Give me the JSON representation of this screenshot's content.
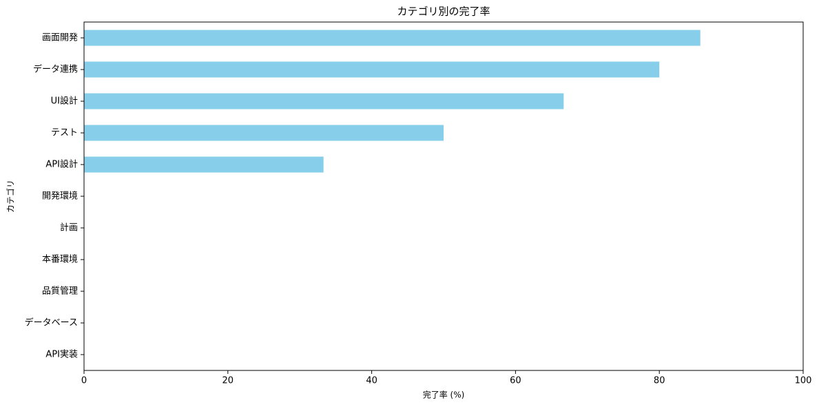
{
  "chart_data": {
    "type": "barh",
    "title": "カテゴリ別の完了率",
    "xlabel": "完了率 (%)",
    "ylabel": "カテゴリ",
    "categories": [
      "画面開発",
      "データ連携",
      "UI設計",
      "テスト",
      "API設計",
      "開発環境",
      "計画",
      "本番環境",
      "品質管理",
      "データベース",
      "API実装"
    ],
    "values": [
      85.7,
      80,
      66.7,
      50,
      33.3,
      0,
      0,
      0,
      0,
      0,
      0
    ],
    "color": "#87ceeb",
    "xlim": [
      0,
      100
    ],
    "xticks": [
      0,
      20,
      40,
      60,
      80,
      100
    ],
    "grid": false
  }
}
